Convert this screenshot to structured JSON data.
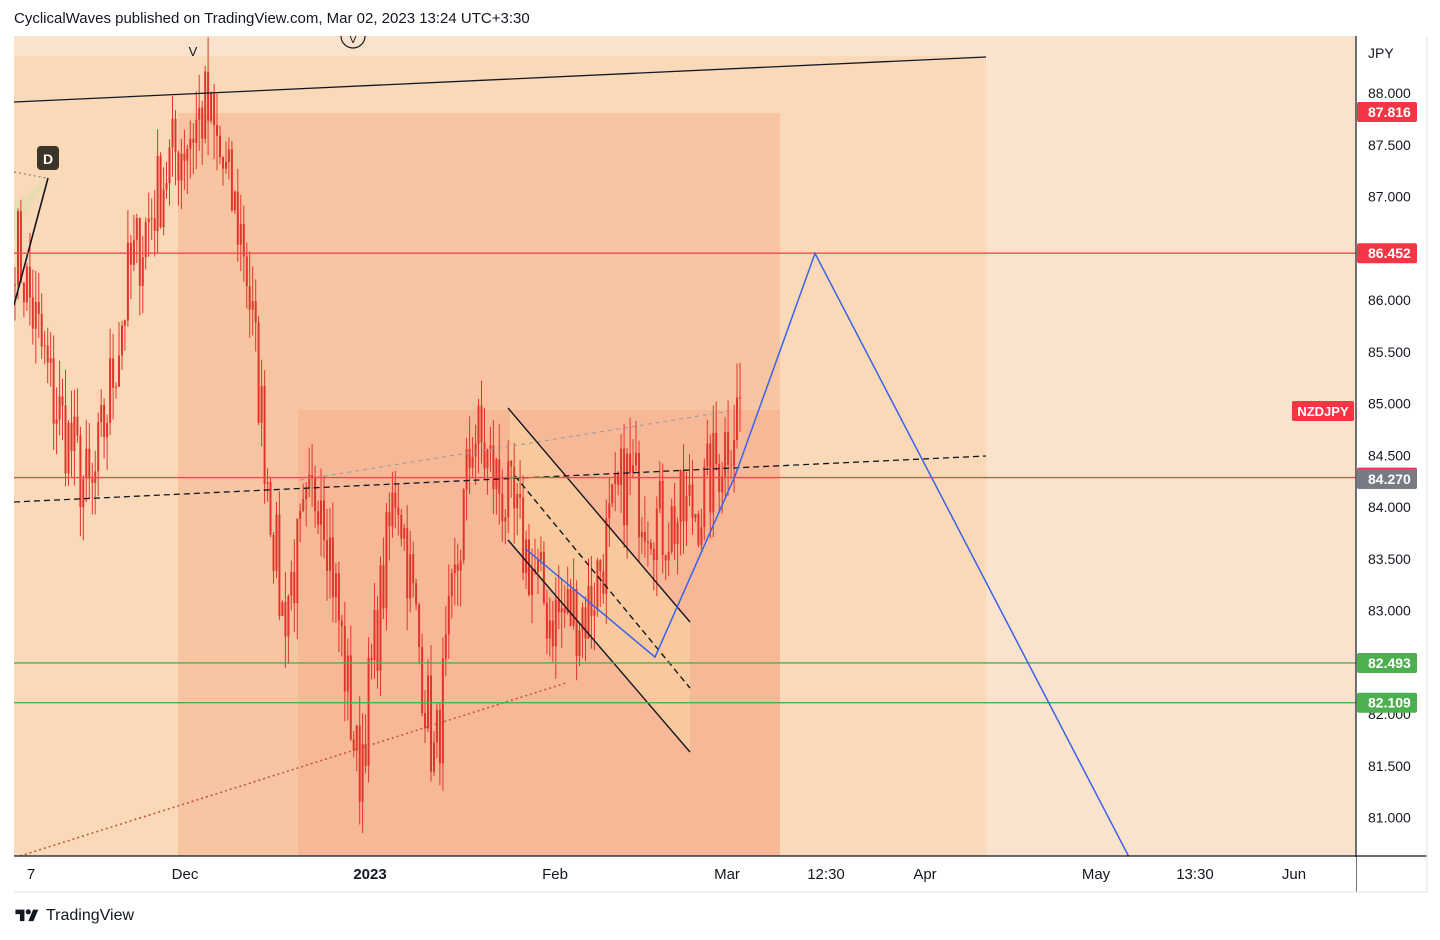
{
  "header": {
    "publisher_text": "CyclicalWaves published on TradingView.com, Mar 02, 2023 13:24 UTC+3:30"
  },
  "footer": {
    "brand": "TradingView"
  },
  "colors": {
    "background_outer": "#fae3cc",
    "background_mid": "#f9d9b8",
    "background_inner": "#f8c5a2",
    "background_core": "#f7b898",
    "candle": "#e0352b",
    "resistance": "#ef4b4b",
    "support": "#4caf50",
    "projection": "#3a62e8",
    "trend": "#131722",
    "last_price_badge": "#787b86",
    "symbol_badge": "#f23645"
  },
  "chart_data": {
    "type": "candlestick",
    "symbol": "NZDJPY",
    "currency": "JPY",
    "y_ticks": [
      "81.000",
      "81.500",
      "82.000",
      "82.500",
      "83.000",
      "83.500",
      "84.000",
      "84.500",
      "85.000",
      "85.500",
      "86.000",
      "86.500",
      "87.000",
      "87.500",
      "88.000"
    ],
    "x_ticks": [
      {
        "label": "7",
        "bold": false
      },
      {
        "label": "Dec",
        "bold": false
      },
      {
        "label": "2023",
        "bold": true
      },
      {
        "label": "Feb",
        "bold": false
      },
      {
        "label": "Mar",
        "bold": false
      },
      {
        "label": "12:30",
        "bold": false
      },
      {
        "label": "Apr",
        "bold": false
      },
      {
        "label": "May",
        "bold": false
      },
      {
        "label": "13:30",
        "bold": false
      },
      {
        "label": "Jun",
        "bold": false
      }
    ],
    "ylim": [
      80.62,
      88.52
    ],
    "price_levels": [
      {
        "label": "87.816",
        "value": 87.816,
        "color": "#f23645",
        "line": false
      },
      {
        "label": "86.452",
        "value": 86.452,
        "color": "#f23645",
        "line": true
      },
      {
        "label": "84.284",
        "value": 84.284,
        "color": "#f23645",
        "line": true
      },
      {
        "label": "84.270",
        "value": 84.27,
        "color": "#787b86",
        "line": false
      },
      {
        "label": "82.493",
        "value": 82.493,
        "color": "#4caf50",
        "line": true
      },
      {
        "label": "82.109",
        "value": 82.109,
        "color": "#4caf50",
        "line": true
      }
    ],
    "wave_labels": [
      "D",
      "V",
      "V"
    ],
    "projection_path": [
      83.6,
      82.55,
      84.3,
      86.45,
      80.6
    ],
    "series_anchors": [
      [
        85.8,
        87.4
      ],
      [
        84.1,
        86.0
      ],
      [
        83.9,
        84.2
      ],
      [
        85.9,
        86.6
      ],
      [
        86.7,
        87.9
      ],
      [
        87.6,
        88.1
      ],
      [
        86.8,
        86.3
      ],
      [
        83.4,
        82.5
      ],
      [
        84.7,
        84.0
      ],
      [
        81.2,
        81.6
      ],
      [
        84.1,
        84.5
      ],
      [
        81.2,
        81.8
      ],
      [
        84.6,
        84.9
      ],
      [
        84.1,
        83.8
      ],
      [
        83.1,
        82.8
      ],
      [
        82.7,
        83.3
      ],
      [
        84.2,
        84.4
      ],
      [
        83.9,
        83.7
      ],
      [
        84.1,
        84.0
      ],
      [
        84.9,
        85.1
      ]
    ]
  }
}
